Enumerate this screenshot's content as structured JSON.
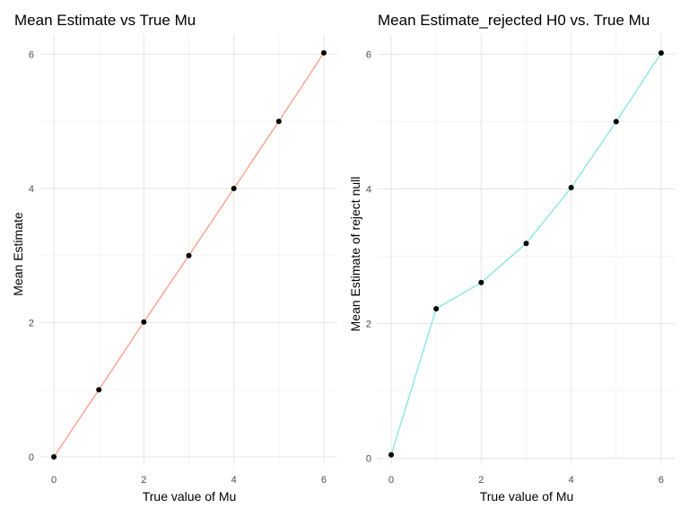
{
  "chart_data": [
    {
      "type": "line",
      "title": "Mean Estimate vs True Mu",
      "xlabel": "True value of Mu",
      "ylabel": "Mean Estimate",
      "x": [
        0,
        1,
        2,
        3,
        4,
        5,
        6
      ],
      "series": [
        {
          "values": [
            0.0,
            1.0,
            2.01,
            3.0,
            4.0,
            5.0,
            6.02
          ],
          "color": "#F8A28F"
        }
      ],
      "xlim": [
        -0.3,
        6.3
      ],
      "ylim": [
        -0.12,
        6.3
      ],
      "xticks": [
        0,
        2,
        4,
        6
      ],
      "yticks": [
        0,
        2,
        4,
        6
      ],
      "grid": true,
      "legend": "none"
    },
    {
      "type": "line",
      "title": "Mean Estimate_rejected H0 vs. True Mu",
      "xlabel": "True value of Mu",
      "ylabel": "Mean Estimate of reject null",
      "x": [
        0,
        1,
        2,
        3,
        4,
        5,
        6
      ],
      "series": [
        {
          "values": [
            0.05,
            2.22,
            2.61,
            3.19,
            4.02,
            5.0,
            6.02
          ],
          "color": "#8CE6E0"
        }
      ],
      "xlim": [
        -0.3,
        6.3
      ],
      "ylim": [
        -0.1,
        6.3
      ],
      "xticks": [
        0,
        2,
        4,
        6
      ],
      "yticks": [
        0,
        2,
        4,
        6
      ],
      "grid": true,
      "legend": "none"
    }
  ]
}
